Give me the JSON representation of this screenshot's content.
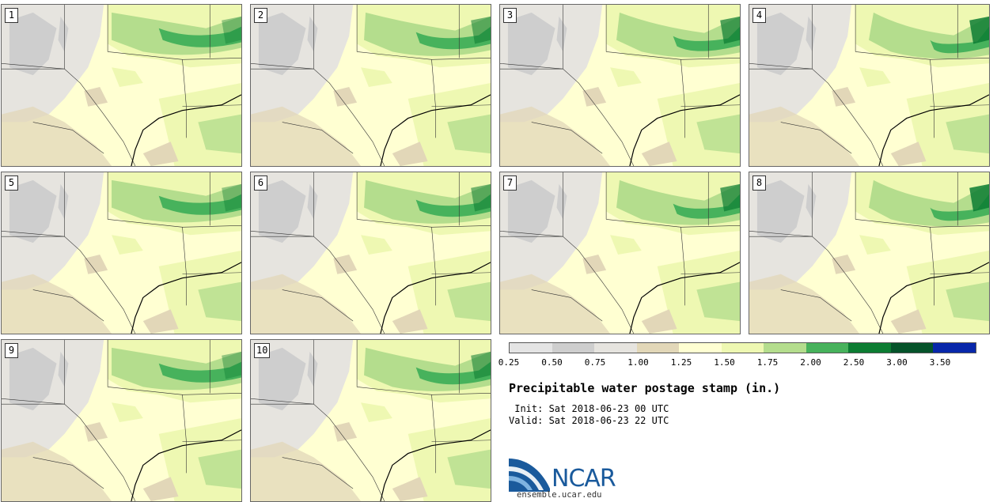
{
  "panels": [
    {
      "label": "1"
    },
    {
      "label": "2"
    },
    {
      "label": "3"
    },
    {
      "label": "4"
    },
    {
      "label": "5"
    },
    {
      "label": "6"
    },
    {
      "label": "7"
    },
    {
      "label": "8"
    },
    {
      "label": "9"
    },
    {
      "label": "10"
    }
  ],
  "colorbar": {
    "colors": [
      "#e4e4e4",
      "#cecece",
      "#e6e4df",
      "#e2d7b8",
      "#ffffd2",
      "#eef8b2",
      "#b4dd8d",
      "#47b25c",
      "#0c7c32",
      "#05532a",
      "#0827aa"
    ],
    "ticks": [
      "0.25",
      "0.50",
      "0.75",
      "1.00",
      "1.25",
      "1.50",
      "1.75",
      "2.00",
      "2.50",
      "3.00",
      "3.50"
    ]
  },
  "title": "Precipitable water postage stamp (in.)",
  "init": " Init: Sat 2018-06-23 00 UTC",
  "valid": "Valid: Sat 2018-06-23 22 UTC",
  "logo": {
    "name": "NCAR",
    "url": "ensemble.ucar.edu"
  }
}
